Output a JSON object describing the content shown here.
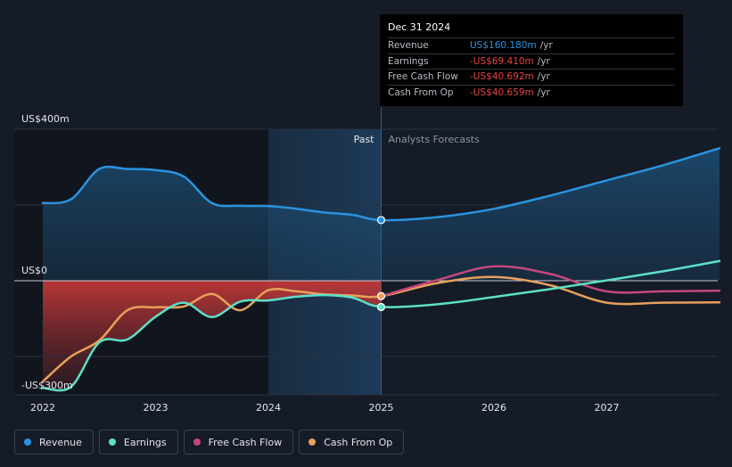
{
  "chart_data": {
    "type": "line",
    "x_tick_labels": [
      "2022",
      "2023",
      "2024",
      "2025",
      "2026",
      "2027"
    ],
    "y_tick_labels": [
      "US$400m",
      "US$0",
      "-US$300m"
    ],
    "ylim": [
      -300,
      400
    ],
    "past_label": "Past",
    "forecast_label": "Analysts Forecasts",
    "highlight_date": "Dec 31 2024",
    "series": [
      {
        "name": "Revenue",
        "color": "#2b93e0",
        "points": [
          [
            2022.0,
            205
          ],
          [
            2022.25,
            215
          ],
          [
            2022.5,
            295
          ],
          [
            2022.75,
            295
          ],
          [
            2023.0,
            292
          ],
          [
            2023.25,
            275
          ],
          [
            2023.5,
            205
          ],
          [
            2023.75,
            198
          ],
          [
            2024.0,
            197
          ],
          [
            2024.25,
            190
          ],
          [
            2024.5,
            180
          ],
          [
            2024.75,
            174
          ],
          [
            2025.0,
            160
          ],
          [
            2025.5,
            168
          ],
          [
            2026.0,
            190
          ],
          [
            2026.5,
            225
          ],
          [
            2027.0,
            265
          ],
          [
            2027.5,
            305
          ],
          [
            2028.0,
            350
          ]
        ]
      },
      {
        "name": "Earnings",
        "color": "#5de0c8",
        "points": [
          [
            2022.0,
            -283
          ],
          [
            2022.25,
            -280
          ],
          [
            2022.5,
            -163
          ],
          [
            2022.75,
            -155
          ],
          [
            2023.0,
            -95
          ],
          [
            2023.25,
            -58
          ],
          [
            2023.5,
            -96
          ],
          [
            2023.75,
            -55
          ],
          [
            2024.0,
            -52
          ],
          [
            2024.25,
            -42
          ],
          [
            2024.5,
            -38
          ],
          [
            2024.75,
            -45
          ],
          [
            2025.0,
            -69
          ],
          [
            2025.5,
            -62
          ],
          [
            2026.0,
            -43
          ],
          [
            2026.5,
            -22
          ],
          [
            2027.0,
            1
          ],
          [
            2027.5,
            25
          ],
          [
            2028.0,
            52
          ]
        ]
      },
      {
        "name": "Free Cash Flow",
        "color": "#c4477e",
        "points": [
          [
            2025.0,
            -40.7
          ],
          [
            2025.5,
            2
          ],
          [
            2026.0,
            38
          ],
          [
            2026.5,
            18
          ],
          [
            2027.0,
            -28
          ],
          [
            2027.5,
            -28
          ],
          [
            2028.0,
            -26
          ]
        ]
      },
      {
        "name": "Cash From Op",
        "color": "#e8a05b",
        "points": [
          [
            2022.0,
            -266
          ],
          [
            2022.25,
            -200
          ],
          [
            2022.5,
            -158
          ],
          [
            2022.75,
            -78
          ],
          [
            2023.0,
            -70
          ],
          [
            2023.25,
            -68
          ],
          [
            2023.5,
            -35
          ],
          [
            2023.75,
            -78
          ],
          [
            2024.0,
            -25
          ],
          [
            2024.25,
            -28
          ],
          [
            2024.5,
            -36
          ],
          [
            2024.75,
            -39
          ],
          [
            2025.0,
            -40.7
          ],
          [
            2025.5,
            -6
          ],
          [
            2026.0,
            10
          ],
          [
            2026.5,
            -12
          ],
          [
            2027.0,
            -58
          ],
          [
            2027.5,
            -58
          ],
          [
            2028.0,
            -57
          ]
        ]
      }
    ],
    "tooltip": {
      "date": "Dec 31 2024",
      "rows": [
        {
          "label": "Revenue",
          "value": "US$160.180m",
          "unit": "/yr",
          "color": "#2b93e0"
        },
        {
          "label": "Earnings",
          "value": "-US$69.410m",
          "unit": "/yr",
          "color": "#e64646"
        },
        {
          "label": "Free Cash Flow",
          "value": "-US$40.692m",
          "unit": "/yr",
          "color": "#e64646"
        },
        {
          "label": "Cash From Op",
          "value": "-US$40.659m",
          "unit": "/yr",
          "color": "#e64646"
        }
      ]
    },
    "legend": [
      {
        "label": "Revenue",
        "color": "#2b93e0"
      },
      {
        "label": "Earnings",
        "color": "#5de0c8"
      },
      {
        "label": "Free Cash Flow",
        "color": "#c4477e"
      },
      {
        "label": "Cash From Op",
        "color": "#e8a05b"
      }
    ]
  }
}
